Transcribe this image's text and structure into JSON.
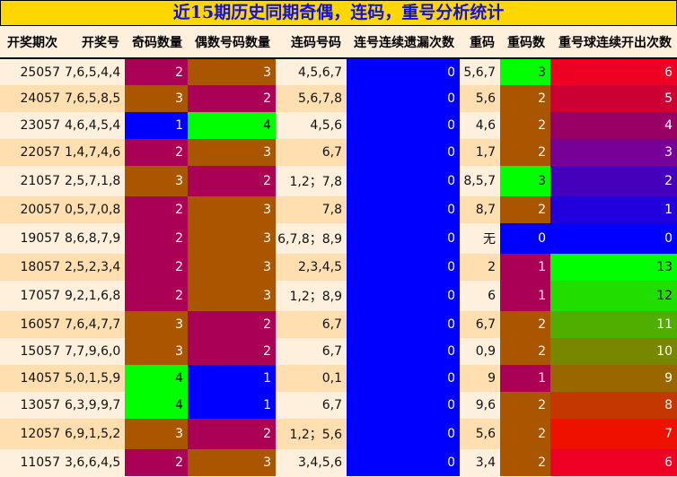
{
  "title": "近15期历史同期奇偶，连码，重号分析统计",
  "headers": [
    "开奖期次",
    "开奖号",
    "奇码数量",
    "偶数号码数量",
    "连码号码",
    "连号连续遗漏次数",
    "重码",
    "重码数",
    "重号球连续开出次数"
  ],
  "colors": {
    "magenta": "#aa0055",
    "brown": "#aa5500",
    "blue": "#0000ff",
    "green": "#00ff00"
  },
  "rows": [
    {
      "cells": [
        "25057",
        "7,6,5,4,4",
        "2",
        "3",
        "4,5,6,7",
        "0",
        "5,6,7",
        "3",
        "6"
      ],
      "odd_c": "#aa0055",
      "even_c": "#aa5500",
      "rep_c": "#00ff00",
      "streak_c": "#ee0022"
    },
    {
      "cells": [
        "24057",
        "7,6,5,8,5",
        "3",
        "2",
        "5,6,7,8",
        "0",
        "5,6",
        "2",
        "5"
      ],
      "odd_c": "#aa5500",
      "even_c": "#aa0055",
      "rep_c": "#aa5500",
      "streak_c": "#cc0033"
    },
    {
      "cells": [
        "23057",
        "4,6,4,5,4",
        "1",
        "4",
        "4,5,6",
        "0",
        "4,6",
        "2",
        "4"
      ],
      "odd_c": "#0000ff",
      "even_c": "#00ff00",
      "rep_c": "#aa5500",
      "streak_c": "#990066"
    },
    {
      "cells": [
        "22057",
        "1,4,7,4,6",
        "2",
        "3",
        "6,7",
        "0",
        "1,7",
        "2",
        "3"
      ],
      "odd_c": "#aa0055",
      "even_c": "#aa5500",
      "rep_c": "#aa5500",
      "streak_c": "#770099"
    },
    {
      "cells": [
        "21057",
        "2,5,7,1,8",
        "3",
        "2",
        "1,2；7,8",
        "0",
        "8,5,7",
        "3",
        "2"
      ],
      "odd_c": "#aa5500",
      "even_c": "#aa0055",
      "rep_c": "#00ff00",
      "streak_c": "#4400bb"
    },
    {
      "cells": [
        "20057",
        "0,5,7,0,8",
        "2",
        "3",
        "7,8",
        "0",
        "8,7",
        "2",
        "1"
      ],
      "odd_c": "#aa0055",
      "even_c": "#aa5500",
      "rep_c": "#aa5500",
      "streak_c": "#2200dd"
    },
    {
      "cells": [
        "19057",
        "8,6,8,7,9",
        "2",
        "3",
        "6,7,8；8,9",
        "0",
        "无",
        "0",
        "0"
      ],
      "odd_c": "#aa0055",
      "even_c": "#aa5500",
      "rep_c": "#0000ff",
      "streak_c": "#0000ff"
    },
    {
      "cells": [
        "18057",
        "2,5,2,3,4",
        "2",
        "3",
        "2,3,4,5",
        "0",
        "2",
        "1",
        "13"
      ],
      "odd_c": "#aa0055",
      "even_c": "#aa5500",
      "rep_c": "#aa0055",
      "streak_c": "#00ff00"
    },
    {
      "cells": [
        "17057",
        "9,2,1,6,8",
        "2",
        "3",
        "1,2；8,9",
        "0",
        "6",
        "1",
        "12"
      ],
      "odd_c": "#aa0055",
      "even_c": "#aa5500",
      "rep_c": "#aa0055",
      "streak_c": "#22dd00"
    },
    {
      "cells": [
        "16057",
        "7,6,4,7,7",
        "3",
        "2",
        "6,7",
        "0",
        "6,7",
        "2",
        "11"
      ],
      "odd_c": "#aa5500",
      "even_c": "#aa0055",
      "rep_c": "#aa5500",
      "streak_c": "#4fae00"
    },
    {
      "cells": [
        "15057",
        "7,7,9,6,0",
        "3",
        "2",
        "6,7",
        "0",
        "0,9",
        "2",
        "10"
      ],
      "odd_c": "#aa5500",
      "even_c": "#aa0055",
      "rep_c": "#aa5500",
      "streak_c": "#778800"
    },
    {
      "cells": [
        "14057",
        "5,0,1,5,9",
        "4",
        "1",
        "0,1",
        "0",
        "9",
        "1",
        "9"
      ],
      "odd_c": "#00ff00",
      "even_c": "#0000ff",
      "rep_c": "#aa0055",
      "streak_c": "#996600"
    },
    {
      "cells": [
        "13057",
        "6,3,9,9,7",
        "4",
        "1",
        "6,7",
        "0",
        "9,6",
        "2",
        "8"
      ],
      "odd_c": "#00ff00",
      "even_c": "#0000ff",
      "rep_c": "#aa5500",
      "streak_c": "#c43800"
    },
    {
      "cells": [
        "12057",
        "6,9,1,5,2",
        "3",
        "2",
        "1,2；5,6",
        "0",
        "5,6",
        "2",
        "7"
      ],
      "odd_c": "#aa5500",
      "even_c": "#aa0055",
      "rep_c": "#aa5500",
      "streak_c": "#ee1100"
    },
    {
      "cells": [
        "11057",
        "3,6,6,4,5",
        "2",
        "3",
        "3,4,5,6",
        "0",
        "3,4",
        "2",
        "6"
      ],
      "odd_c": "#aa0055",
      "even_c": "#aa5500",
      "rep_c": "#aa5500",
      "streak_c": "#ee0022"
    }
  ]
}
